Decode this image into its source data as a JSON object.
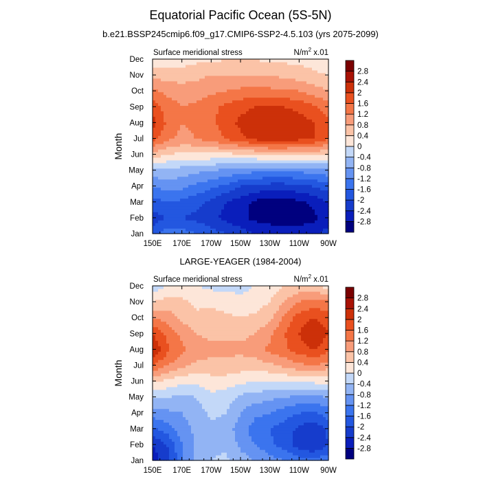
{
  "page": {
    "title": "Equatorial Pacific Ocean (5S-5N)",
    "case_title": "b.e21.BSSP245cmip6.f09_g17.CMIP6-SSP2-4.5.103 (yrs 2075-2099)",
    "obs_title": "LARGE-YEAGER (1984-2004)"
  },
  "chart_data": [
    {
      "type": "heatmap",
      "title": "b.e21.BSSP245cmip6.f09_g17.CMIP6-SSP2-4.5.103 (yrs 2075-2099)",
      "left_label": "Surface meridional stress",
      "right_label_base": "N/m",
      "right_label_sup": "2",
      "right_label_tail": " x.01",
      "ylabel": "Month",
      "xlabel": "",
      "x_ticks": [
        "150E",
        "170E",
        "170W",
        "150W",
        "130W",
        "110W",
        "90W"
      ],
      "y_ticks": [
        "Jan",
        "Feb",
        "Mar",
        "Apr",
        "May",
        "Jun",
        "Jul",
        "Aug",
        "Sep",
        "Oct",
        "Nov",
        "Dec"
      ],
      "x_range_lon": [
        150,
        270
      ],
      "colorbar_levels": [
        -2.8,
        -2.4,
        -2,
        -1.6,
        -1.2,
        -0.8,
        -0.4,
        0,
        0.4,
        0.8,
        1.2,
        1.6,
        2,
        2.4,
        2.8
      ],
      "colorbar_labels": [
        "-2.8",
        "-2.4",
        "-2",
        "-1.6",
        "-1.2",
        "-0.8",
        "-0.4",
        "0",
        "0.4",
        "0.8",
        "1.2",
        "1.6",
        "2",
        "2.4",
        "2.8"
      ],
      "x_lon": [
        150,
        160,
        170,
        180,
        190,
        200,
        210,
        220,
        230,
        240,
        250,
        260,
        270
      ],
      "values": [
        [
          -1.8,
          -1.3,
          -1.4,
          -1.6,
          -1.8,
          -2.0,
          -2.2,
          -2.4,
          -2.5,
          -2.6,
          -2.6,
          -2.5,
          -2.2
        ],
        [
          -2.2,
          -2.0,
          -2.0,
          -2.1,
          -2.3,
          -2.5,
          -2.7,
          -2.9,
          -3.0,
          -3.0,
          -3.0,
          -2.9,
          -2.6
        ],
        [
          -1.8,
          -1.6,
          -1.7,
          -1.9,
          -2.1,
          -2.4,
          -2.6,
          -2.9,
          -3.0,
          -3.0,
          -2.9,
          -2.7,
          -2.4
        ],
        [
          -1.2,
          -1.0,
          -1.1,
          -1.3,
          -1.5,
          -1.7,
          -2.0,
          -2.1,
          -2.2,
          -2.2,
          -2.1,
          -2.0,
          -1.8
        ],
        [
          -0.5,
          -0.5,
          -0.6,
          -0.7,
          -0.8,
          -0.9,
          -1.0,
          -1.1,
          -1.1,
          -1.1,
          -1.1,
          -1.0,
          -0.9
        ],
        [
          0.6,
          0.4,
          0.3,
          0.3,
          0.3,
          0.3,
          0.3,
          0.4,
          0.5,
          0.5,
          0.5,
          0.5,
          0.4
        ],
        [
          1.8,
          1.3,
          1.1,
          1.2,
          1.4,
          1.6,
          1.9,
          2.1,
          2.2,
          2.2,
          2.1,
          2.0,
          1.6
        ],
        [
          2.2,
          1.5,
          1.2,
          1.3,
          1.5,
          1.8,
          2.1,
          2.2,
          2.3,
          2.3,
          2.2,
          2.0,
          1.7
        ],
        [
          1.8,
          1.4,
          1.2,
          1.3,
          1.5,
          1.7,
          1.9,
          2.0,
          2.0,
          2.0,
          1.9,
          1.7,
          1.4
        ],
        [
          1.3,
          1.1,
          1.0,
          1.0,
          1.1,
          1.2,
          1.3,
          1.3,
          1.3,
          1.3,
          1.2,
          1.0,
          0.8
        ],
        [
          0.7,
          0.6,
          0.6,
          0.7,
          0.8,
          0.8,
          0.8,
          0.8,
          0.8,
          0.7,
          0.6,
          0.5,
          0.4
        ],
        [
          0.1,
          0.2,
          0.2,
          0.3,
          0.3,
          0.4,
          0.4,
          0.4,
          0.3,
          0.3,
          0.3,
          0.2,
          0.0
        ]
      ]
    },
    {
      "type": "heatmap",
      "title": "LARGE-YEAGER (1984-2004)",
      "left_label": "Surface meridional stress",
      "right_label_base": "N/m",
      "right_label_sup": "2",
      "right_label_tail": " x.01",
      "ylabel": "Month",
      "xlabel": "",
      "x_ticks": [
        "150E",
        "170E",
        "170W",
        "150W",
        "130W",
        "110W",
        "90W"
      ],
      "y_ticks": [
        "Jan",
        "Feb",
        "Mar",
        "Apr",
        "May",
        "Jun",
        "Jul",
        "Aug",
        "Sep",
        "Oct",
        "Nov",
        "Dec"
      ],
      "x_range_lon": [
        150,
        270
      ],
      "colorbar_levels": [
        -2.8,
        -2.4,
        -2,
        -1.6,
        -1.2,
        -0.8,
        -0.4,
        0,
        0.4,
        0.8,
        1.2,
        1.6,
        2,
        2.4,
        2.8
      ],
      "colorbar_labels": [
        "-2.8",
        "-2.4",
        "-2",
        "-1.6",
        "-1.2",
        "-0.8",
        "-0.4",
        "0",
        "0.4",
        "0.8",
        "1.2",
        "1.6",
        "2",
        "2.4",
        "2.8"
      ],
      "x_lon": [
        150,
        160,
        170,
        180,
        190,
        200,
        210,
        220,
        230,
        240,
        250,
        260,
        270
      ],
      "values": [
        [
          -2.6,
          -2.2,
          -1.3,
          -0.7,
          -0.4,
          -0.3,
          -0.6,
          -0.8,
          -1.0,
          -1.2,
          -1.4,
          -1.5,
          -1.3
        ],
        [
          -2.4,
          -2.0,
          -1.2,
          -0.7,
          -0.5,
          -0.5,
          -0.9,
          -1.2,
          -1.5,
          -1.8,
          -2.2,
          -2.4,
          -2.0
        ],
        [
          -1.7,
          -1.4,
          -1.0,
          -0.7,
          -0.5,
          -0.6,
          -1.0,
          -1.4,
          -1.6,
          -1.8,
          -2.1,
          -2.3,
          -1.9
        ],
        [
          -1.0,
          -0.9,
          -0.8,
          -0.6,
          -0.3,
          -0.4,
          -0.8,
          -1.1,
          -1.2,
          -1.4,
          -1.6,
          -1.7,
          -1.4
        ],
        [
          -0.4,
          -0.4,
          -0.5,
          -0.4,
          -0.1,
          -0.2,
          -0.5,
          -0.6,
          -0.7,
          -0.8,
          -0.9,
          -0.9,
          -0.8
        ],
        [
          0.5,
          0.3,
          0.1,
          0.1,
          0.2,
          0.2,
          0.1,
          0.0,
          0.0,
          0.0,
          0.1,
          0.1,
          0.1
        ],
        [
          1.6,
          1.2,
          0.9,
          0.7,
          0.7,
          0.7,
          0.6,
          0.6,
          0.7,
          0.9,
          1.1,
          1.2,
          1.0
        ],
        [
          2.4,
          1.7,
          1.3,
          1.0,
          0.9,
          0.9,
          0.9,
          1.0,
          1.3,
          1.5,
          1.8,
          2.0,
          1.7
        ],
        [
          2.0,
          1.5,
          1.1,
          0.8,
          0.7,
          0.7,
          0.7,
          0.8,
          1.1,
          1.6,
          2.0,
          2.4,
          2.0
        ],
        [
          1.2,
          1.0,
          0.7,
          0.5,
          0.6,
          0.5,
          0.4,
          0.5,
          0.7,
          1.3,
          1.8,
          2.0,
          1.8
        ],
        [
          0.4,
          0.6,
          0.5,
          0.3,
          0.3,
          0.2,
          0.1,
          0.2,
          0.4,
          0.8,
          1.2,
          1.4,
          1.3
        ],
        [
          -0.3,
          0.0,
          0.1,
          0.0,
          -0.1,
          -0.1,
          -0.1,
          0.0,
          0.2,
          0.4,
          0.5,
          0.5,
          0.2
        ]
      ]
    }
  ],
  "palette": [
    "#00007f",
    "#0a1ebb",
    "#163ccc",
    "#2357e0",
    "#3b74ee",
    "#6593f2",
    "#92b4f4",
    "#c3d8f8",
    "#fde6d9",
    "#fbc3a7",
    "#f89c7a",
    "#f47647",
    "#e9501f",
    "#cc3009",
    "#a81205",
    "#7a0000"
  ]
}
